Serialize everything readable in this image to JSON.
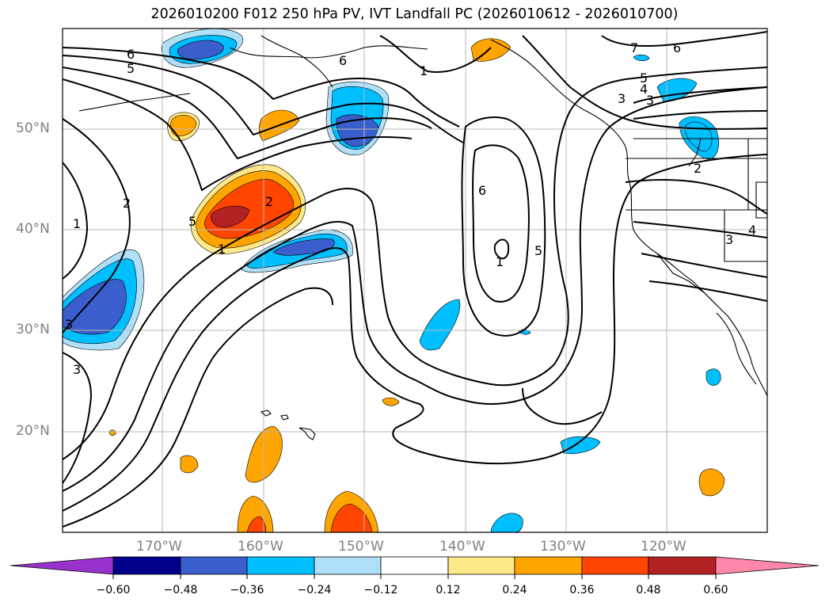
{
  "title": "2026010200 F012 250 hPa PV, IVT Landfall PC (2026010612 - 2026010700)",
  "lat_labels": [
    "50°N",
    "40°N",
    "30°N",
    "20°N"
  ],
  "lon_labels": [
    "170°W",
    "160°W",
    "150°W",
    "140°W",
    "130°W",
    "120°W"
  ],
  "colorbar": {
    "ticks": [
      "−0.60",
      "−0.48",
      "−0.36",
      "−0.24",
      "−0.12",
      "0.12",
      "0.24",
      "0.36",
      "0.48",
      "0.60"
    ],
    "colors": [
      "#9932cc",
      "#00008b",
      "#3a5fcd",
      "#00bfff",
      "#b0e0f8",
      "#ffffff",
      "#ffe88a",
      "#ffa500",
      "#ff4500",
      "#b22222",
      "#ff88aa"
    ]
  },
  "contour_labels": [
    "6",
    "5",
    "1",
    "7",
    "6",
    "5",
    "4",
    "3",
    "6",
    "2",
    "1",
    "2",
    "5",
    "1",
    "6",
    "5",
    "1",
    "3",
    "3",
    "2",
    "3",
    "4",
    "3"
  ]
}
